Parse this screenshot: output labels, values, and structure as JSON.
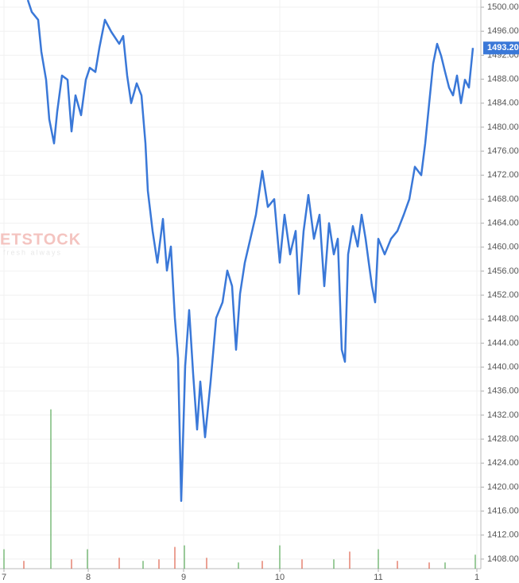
{
  "chart_data": {
    "type": "line",
    "watermark": "ETSTOCK",
    "watermark_sub": "fresh always",
    "series": [
      {
        "name": "price",
        "color": "#3a78d8",
        "x": [
          35,
          40,
          48,
          52,
          58,
          62,
          68,
          72,
          78,
          85,
          90,
          95,
          102,
          108,
          113,
          120,
          125,
          132,
          140,
          150,
          155,
          160,
          165,
          172,
          178,
          183,
          186,
          192,
          198,
          205,
          210,
          215,
          220,
          224,
          228,
          233,
          238,
          243,
          248,
          252,
          258,
          265,
          272,
          280,
          286,
          292,
          297,
          302,
          308,
          315,
          322,
          330,
          337,
          345,
          352,
          358,
          365,
          372,
          376,
          382,
          388,
          395,
          402,
          408,
          414,
          420,
          425,
          430,
          434,
          438,
          444,
          450,
          455,
          460,
          464,
          468,
          472,
          476,
          484,
          492,
          500,
          508,
          515,
          522,
          530,
          535,
          540,
          545,
          550,
          555,
          560,
          565,
          570,
          575,
          580,
          585,
          590,
          595
        ],
        "values": [
          1501.2,
          1499.2,
          1497.9,
          1492.6,
          1487.9,
          1481.3,
          1477.3,
          1482.6,
          1488.6,
          1487.9,
          1479.3,
          1485.3,
          1482,
          1487.9,
          1489.9,
          1489.2,
          1493.2,
          1497.9,
          1495.9,
          1493.9,
          1495.2,
          1488.6,
          1484,
          1487.3,
          1485.3,
          1477.3,
          1469.4,
          1462.7,
          1457.4,
          1464.7,
          1456.1,
          1460.1,
          1448.2,
          1441.5,
          1417.7,
          1440.2,
          1449.5,
          1438.9,
          1429.6,
          1437.6,
          1428.3,
          1437.6,
          1448.2,
          1450.8,
          1456.1,
          1453.5,
          1442.9,
          1452.2,
          1457.4,
          1461.4,
          1465.4,
          1472.7,
          1466.7,
          1468,
          1457.4,
          1465.4,
          1458.8,
          1462.7,
          1452.2,
          1462.7,
          1468.7,
          1461.4,
          1465.4,
          1453.5,
          1464,
          1458.8,
          1461.4,
          1442.9,
          1440.9,
          1458.8,
          1463.5,
          1460.1,
          1465.4,
          1461.4,
          1457.4,
          1453.5,
          1450.8,
          1461.4,
          1458.8,
          1461.4,
          1462.7,
          1465.4,
          1468,
          1473.4,
          1472,
          1477.3,
          1484,
          1490.6,
          1493.9,
          1491.9,
          1489.2,
          1486.6,
          1485.3,
          1488.6,
          1484,
          1487.9,
          1486.6,
          1493.2
        ]
      }
    ],
    "volume_series": [
      {
        "name": "up",
        "color": "#3a9a3a",
        "x": [
          5,
          64,
          110,
          180,
          232,
          300,
          352,
          420,
          476,
          560,
          598
        ],
        "values": [
          25,
          205,
          25,
          10,
          30,
          8,
          30,
          12,
          25,
          8,
          18
        ]
      },
      {
        "name": "down",
        "color": "#d9452b",
        "x": [
          30,
          90,
          150,
          200,
          220,
          260,
          330,
          380,
          440,
          500,
          540
        ],
        "values": [
          10,
          12,
          14,
          12,
          28,
          14,
          10,
          12,
          22,
          10,
          8
        ]
      }
    ],
    "vlim": [
      0,
      220
    ],
    "xlim": [
      0,
      605
    ],
    "xticks": [
      {
        "value": 5,
        "label": "7"
      },
      {
        "value": 111,
        "label": "8"
      },
      {
        "value": 231,
        "label": "9"
      },
      {
        "value": 352,
        "label": "10"
      },
      {
        "value": 476,
        "label": "11"
      },
      {
        "value": 600,
        "label": "1"
      }
    ],
    "ylim": [
      1406.4,
      1501.2
    ],
    "yticks": [
      {
        "value": 1408,
        "label": "1408.00"
      },
      {
        "value": 1412,
        "label": "1412.00"
      },
      {
        "value": 1416,
        "label": "1416.00"
      },
      {
        "value": 1420,
        "label": "1420.00"
      },
      {
        "value": 1424,
        "label": "1424.00"
      },
      {
        "value": 1428,
        "label": "1428.00"
      },
      {
        "value": 1432,
        "label": "1432.00"
      },
      {
        "value": 1436,
        "label": "1436.00"
      },
      {
        "value": 1440,
        "label": "1440.00"
      },
      {
        "value": 1444,
        "label": "1444.00"
      },
      {
        "value": 1448,
        "label": "1448.00"
      },
      {
        "value": 1452,
        "label": "1452.00"
      },
      {
        "value": 1456,
        "label": "1456.00"
      },
      {
        "value": 1460,
        "label": "1460.00"
      },
      {
        "value": 1464,
        "label": "1464.00"
      },
      {
        "value": 1468,
        "label": "1468.00"
      },
      {
        "value": 1472,
        "label": "1472.00"
      },
      {
        "value": 1476,
        "label": "1476.00"
      },
      {
        "value": 1480,
        "label": "1480.00"
      },
      {
        "value": 1484,
        "label": "1484.00"
      },
      {
        "value": 1488,
        "label": "1488.00"
      },
      {
        "value": 1492,
        "label": "1492.00"
      },
      {
        "value": 1496,
        "label": "1496.00"
      },
      {
        "value": 1500,
        "label": "1500.00"
      }
    ],
    "current_price": {
      "value": 1493.2,
      "label": "1493.20"
    },
    "grid": true
  }
}
